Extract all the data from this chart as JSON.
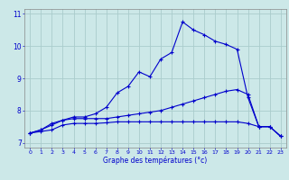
{
  "xlabel": "Graphe des températures (°c)",
  "background_color": "#cce8e8",
  "grid_color": "#aacccc",
  "line_color": "#0000cc",
  "x_hours": [
    0,
    1,
    2,
    3,
    4,
    5,
    6,
    7,
    8,
    9,
    10,
    11,
    12,
    13,
    14,
    15,
    16,
    17,
    18,
    19,
    20,
    21,
    22,
    23
  ],
  "line1": [
    7.3,
    7.4,
    7.6,
    7.7,
    7.8,
    7.8,
    7.9,
    8.1,
    8.55,
    8.75,
    9.2,
    9.05,
    9.6,
    9.8,
    10.75,
    10.5,
    10.35,
    10.15,
    10.05,
    9.9,
    8.4,
    7.5,
    7.5,
    7.2
  ],
  "line2": [
    7.3,
    7.4,
    7.55,
    7.7,
    7.75,
    7.75,
    7.75,
    7.75,
    7.8,
    7.85,
    7.9,
    7.95,
    8.0,
    8.1,
    8.2,
    8.3,
    8.4,
    8.5,
    8.6,
    8.65,
    8.5,
    7.5,
    7.5,
    7.2
  ],
  "line3": [
    7.3,
    7.35,
    7.4,
    7.55,
    7.6,
    7.6,
    7.6,
    7.62,
    7.65,
    7.65,
    7.65,
    7.65,
    7.65,
    7.65,
    7.65,
    7.65,
    7.65,
    7.65,
    7.65,
    7.65,
    7.6,
    7.5,
    7.5,
    7.2
  ],
  "ylim": [
    6.85,
    11.15
  ],
  "xlim": [
    -0.5,
    23.5
  ],
  "yticks": [
    7,
    8,
    9,
    10,
    11
  ],
  "xticks": [
    0,
    1,
    2,
    3,
    4,
    5,
    6,
    7,
    8,
    9,
    10,
    11,
    12,
    13,
    14,
    15,
    16,
    17,
    18,
    19,
    20,
    21,
    22,
    23
  ]
}
